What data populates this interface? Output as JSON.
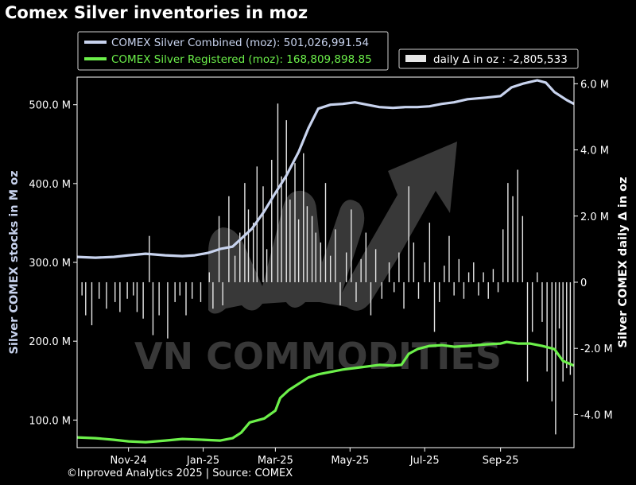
{
  "chart_data": {
    "type": "line",
    "title": "Comex Silver inventories in moz",
    "ylabel": "Silver COMEX stocks in M oz",
    "y2label": "Silver COMEX daily Δ in oz",
    "ylim": [
      65,
      535
    ],
    "y2lim": [
      -5.0,
      6.2
    ],
    "xlim": [
      "2024-09-20",
      "2025-10-31"
    ],
    "x_ticks": [
      "2024-11-01",
      "2025-01-01",
      "2025-03-01",
      "2025-05-01",
      "2025-07-01",
      "2025-09-01"
    ],
    "x_tick_labels": [
      "Nov-24",
      "Jan-25",
      "Mar-25",
      "May-25",
      "Jul-25",
      "Sep-25"
    ],
    "y_ticks": [
      100,
      200,
      300,
      400,
      500
    ],
    "y_tick_labels": [
      "100.0 M",
      "200.0 M",
      "300.0 M",
      "400.0 M",
      "500.0 M"
    ],
    "y2_ticks": [
      -4,
      -2,
      0,
      2,
      4,
      6
    ],
    "y2_tick_labels": [
      "-4.0 M",
      "-2.0 M",
      "0",
      "2.0 M",
      "4.0 M",
      "6.0 M"
    ],
    "grid": false,
    "legend": [
      {
        "label": "COMEX Silver Combined (moz): 501,026,991.54",
        "color": "#c8d3ee"
      },
      {
        "label": "COMEX Silver Registered (moz): 168,809,898.85",
        "color": "#6cf04a"
      }
    ],
    "legend2": {
      "label": "daily Δ in oz : -2,805,533",
      "color": "#e6e6e6"
    },
    "series": [
      {
        "name": "COMEX Silver Combined (moz)",
        "color": "#c8d3ee",
        "axis": "left",
        "points": [
          [
            "2024-09-20",
            307
          ],
          [
            "2024-10-05",
            306
          ],
          [
            "2024-10-20",
            307
          ],
          [
            "2024-11-01",
            309
          ],
          [
            "2024-11-15",
            311
          ],
          [
            "2024-12-01",
            309
          ],
          [
            "2024-12-15",
            308
          ],
          [
            "2024-12-25",
            309
          ],
          [
            "2025-01-05",
            312
          ],
          [
            "2025-01-15",
            317
          ],
          [
            "2025-01-25",
            320
          ],
          [
            "2025-02-01",
            330
          ],
          [
            "2025-02-10",
            343
          ],
          [
            "2025-02-20",
            365
          ],
          [
            "2025-03-01",
            388
          ],
          [
            "2025-03-10",
            410
          ],
          [
            "2025-03-20",
            440
          ],
          [
            "2025-03-28",
            470
          ],
          [
            "2025-04-05",
            495
          ],
          [
            "2025-04-15",
            500
          ],
          [
            "2025-04-25",
            501
          ],
          [
            "2025-05-05",
            503
          ],
          [
            "2025-05-15",
            500
          ],
          [
            "2025-05-25",
            497
          ],
          [
            "2025-06-05",
            496
          ],
          [
            "2025-06-15",
            497
          ],
          [
            "2025-06-25",
            497
          ],
          [
            "2025-07-05",
            498
          ],
          [
            "2025-07-15",
            501
          ],
          [
            "2025-07-25",
            503
          ],
          [
            "2025-08-05",
            507
          ],
          [
            "2025-08-20",
            509
          ],
          [
            "2025-09-01",
            511
          ],
          [
            "2025-09-10",
            522
          ],
          [
            "2025-09-20",
            527
          ],
          [
            "2025-10-01",
            531
          ],
          [
            "2025-10-08",
            528
          ],
          [
            "2025-10-15",
            516
          ],
          [
            "2025-10-25",
            506
          ],
          [
            "2025-10-31",
            501
          ]
        ]
      },
      {
        "name": "COMEX Silver Registered (moz)",
        "color": "#6cf04a",
        "axis": "left",
        "points": [
          [
            "2024-09-20",
            78
          ],
          [
            "2024-10-05",
            77
          ],
          [
            "2024-10-20",
            75
          ],
          [
            "2024-11-01",
            73
          ],
          [
            "2024-11-15",
            72
          ],
          [
            "2024-12-01",
            74
          ],
          [
            "2024-12-15",
            76
          ],
          [
            "2025-01-01",
            75
          ],
          [
            "2025-01-15",
            74
          ],
          [
            "2025-01-25",
            77
          ],
          [
            "2025-02-01",
            84
          ],
          [
            "2025-02-08",
            97
          ],
          [
            "2025-02-20",
            102
          ],
          [
            "2025-03-01",
            112
          ],
          [
            "2025-03-05",
            128
          ],
          [
            "2025-03-12",
            138
          ],
          [
            "2025-03-20",
            146
          ],
          [
            "2025-03-28",
            154
          ],
          [
            "2025-04-05",
            158
          ],
          [
            "2025-04-15",
            161
          ],
          [
            "2025-04-25",
            164
          ],
          [
            "2025-05-05",
            166
          ],
          [
            "2025-05-15",
            168
          ],
          [
            "2025-05-25",
            170
          ],
          [
            "2025-06-05",
            169
          ],
          [
            "2025-06-12",
            170
          ],
          [
            "2025-06-18",
            184
          ],
          [
            "2025-06-25",
            190
          ],
          [
            "2025-07-05",
            194
          ],
          [
            "2025-07-15",
            195
          ],
          [
            "2025-07-25",
            193
          ],
          [
            "2025-08-05",
            194
          ],
          [
            "2025-08-20",
            196
          ],
          [
            "2025-09-01",
            197
          ],
          [
            "2025-09-06",
            199
          ],
          [
            "2025-09-15",
            197
          ],
          [
            "2025-09-25",
            197
          ],
          [
            "2025-10-05",
            194
          ],
          [
            "2025-10-15",
            190
          ],
          [
            "2025-10-22",
            175
          ],
          [
            "2025-10-31",
            169
          ]
        ]
      }
    ],
    "daily_delta_bars": {
      "name": "daily Δ in oz",
      "color": "#e6e6e6",
      "axis": "right",
      "points": [
        [
          "2024-09-24",
          -0.4
        ],
        [
          "2024-09-27",
          -1.0
        ],
        [
          "2024-10-02",
          -1.3
        ],
        [
          "2024-10-08",
          -0.5
        ],
        [
          "2024-10-14",
          -0.8
        ],
        [
          "2024-10-21",
          -0.6
        ],
        [
          "2024-10-25",
          -0.9
        ],
        [
          "2024-10-31",
          -0.5
        ],
        [
          "2024-11-05",
          -0.4
        ],
        [
          "2024-11-08",
          -0.9
        ],
        [
          "2024-11-13",
          -1.1
        ],
        [
          "2024-11-18",
          1.4
        ],
        [
          "2024-11-21",
          -1.6
        ],
        [
          "2024-11-26",
          -1.0
        ],
        [
          "2024-12-03",
          -1.7
        ],
        [
          "2024-12-09",
          -0.6
        ],
        [
          "2024-12-13",
          -0.4
        ],
        [
          "2024-12-18",
          -1.0
        ],
        [
          "2024-12-23",
          -0.5
        ],
        [
          "2024-12-30",
          -0.6
        ],
        [
          "2025-01-06",
          0.3
        ],
        [
          "2025-01-09",
          -0.8
        ],
        [
          "2025-01-14",
          2.0
        ],
        [
          "2025-01-17",
          -0.7
        ],
        [
          "2025-01-22",
          2.6
        ],
        [
          "2025-01-27",
          0.8
        ],
        [
          "2025-01-31",
          1.5
        ],
        [
          "2025-02-04",
          3.0
        ],
        [
          "2025-02-07",
          2.2
        ],
        [
          "2025-02-11",
          1.8
        ],
        [
          "2025-02-14",
          3.5
        ],
        [
          "2025-02-19",
          2.9
        ],
        [
          "2025-02-22",
          1.0
        ],
        [
          "2025-02-26",
          3.7
        ],
        [
          "2025-03-03",
          5.4
        ],
        [
          "2025-03-06",
          3.2
        ],
        [
          "2025-03-10",
          4.9
        ],
        [
          "2025-03-13",
          2.5
        ],
        [
          "2025-03-17",
          3.6
        ],
        [
          "2025-03-20",
          1.9
        ],
        [
          "2025-03-24",
          3.9
        ],
        [
          "2025-03-27",
          2.3
        ],
        [
          "2025-03-31",
          2.0
        ],
        [
          "2025-04-03",
          1.5
        ],
        [
          "2025-04-07",
          1.2
        ],
        [
          "2025-04-11",
          3.0
        ],
        [
          "2025-04-15",
          0.8
        ],
        [
          "2025-04-19",
          1.6
        ],
        [
          "2025-04-23",
          -0.7
        ],
        [
          "2025-04-28",
          0.9
        ],
        [
          "2025-05-02",
          2.2
        ],
        [
          "2025-05-06",
          -0.6
        ],
        [
          "2025-05-10",
          0.7
        ],
        [
          "2025-05-14",
          1.5
        ],
        [
          "2025-05-18",
          -1.0
        ],
        [
          "2025-05-22",
          1.0
        ],
        [
          "2025-05-27",
          -0.5
        ],
        [
          "2025-06-02",
          0.6
        ],
        [
          "2025-06-06",
          -0.3
        ],
        [
          "2025-06-10",
          0.9
        ],
        [
          "2025-06-14",
          -0.8
        ],
        [
          "2025-06-18",
          2.9
        ],
        [
          "2025-06-22",
          1.2
        ],
        [
          "2025-06-26",
          -0.5
        ],
        [
          "2025-07-01",
          0.6
        ],
        [
          "2025-07-05",
          1.8
        ],
        [
          "2025-07-09",
          -1.5
        ],
        [
          "2025-07-13",
          -0.6
        ],
        [
          "2025-07-17",
          0.5
        ],
        [
          "2025-07-21",
          1.4
        ],
        [
          "2025-07-25",
          -0.4
        ],
        [
          "2025-07-29",
          0.7
        ],
        [
          "2025-08-02",
          -0.5
        ],
        [
          "2025-08-06",
          0.3
        ],
        [
          "2025-08-10",
          0.6
        ],
        [
          "2025-08-14",
          -0.4
        ],
        [
          "2025-08-18",
          0.3
        ],
        [
          "2025-08-22",
          -0.5
        ],
        [
          "2025-08-26",
          0.4
        ],
        [
          "2025-08-30",
          -0.3
        ],
        [
          "2025-09-03",
          1.6
        ],
        [
          "2025-09-07",
          3.0
        ],
        [
          "2025-09-11",
          2.6
        ],
        [
          "2025-09-15",
          3.4
        ],
        [
          "2025-09-19",
          2.0
        ],
        [
          "2025-09-23",
          -3.0
        ],
        [
          "2025-09-27",
          -1.5
        ],
        [
          "2025-10-01",
          0.3
        ],
        [
          "2025-10-05",
          -1.2
        ],
        [
          "2025-10-09",
          -2.7
        ],
        [
          "2025-10-13",
          -3.6
        ],
        [
          "2025-10-16",
          -4.6
        ],
        [
          "2025-10-19",
          -1.4
        ],
        [
          "2025-10-22",
          -3.0
        ],
        [
          "2025-10-25",
          -2.6
        ],
        [
          "2025-10-28",
          -2.8
        ]
      ]
    }
  },
  "watermark": {
    "text": "VN COMMODITIES"
  },
  "footer": "©Inproved Analytics 2025 | Source: COMEX"
}
